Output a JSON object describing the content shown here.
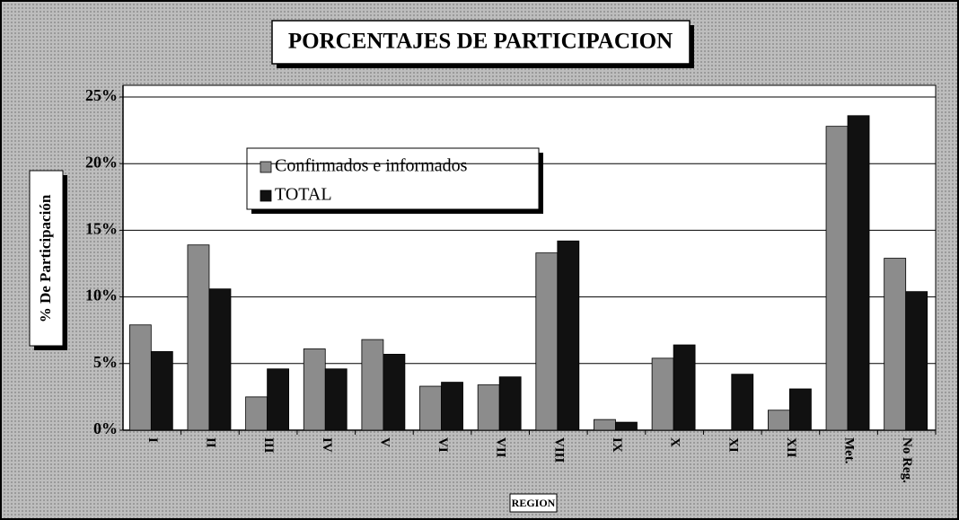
{
  "chart_data": {
    "type": "bar",
    "title": "PORCENTAJES DE PARTICIPACION",
    "x_label": "REGION",
    "y_label": "% De Participación",
    "categories": [
      "I",
      "II",
      "III",
      "IV",
      "V",
      "VI",
      "VII",
      "VIII",
      "IX",
      "X",
      "XI",
      "XII",
      "Met.",
      "No Reg."
    ],
    "series": [
      {
        "name": "Confirmados e informados",
        "color": "#8c8c8c",
        "values": [
          7.9,
          13.9,
          2.5,
          6.1,
          6.8,
          3.3,
          3.4,
          13.3,
          0.8,
          5.4,
          0,
          1.5,
          22.8,
          12.9
        ]
      },
      {
        "name": "TOTAL",
        "color": "#111111",
        "values": [
          5.9,
          10.6,
          4.6,
          4.6,
          5.7,
          3.6,
          4.0,
          14.2,
          0.6,
          6.4,
          4.2,
          3.1,
          23.6,
          10.4
        ]
      }
    ],
    "ylim": [
      0,
      25
    ],
    "yticks": [
      {
        "value": 0,
        "label": "0%"
      },
      {
        "value": 5,
        "label": "5%"
      },
      {
        "value": 10,
        "label": "10%"
      },
      {
        "value": 15,
        "label": "15%"
      },
      {
        "value": 20,
        "label": "20%"
      },
      {
        "value": 25,
        "label": "25%"
      }
    ],
    "grid": true
  }
}
